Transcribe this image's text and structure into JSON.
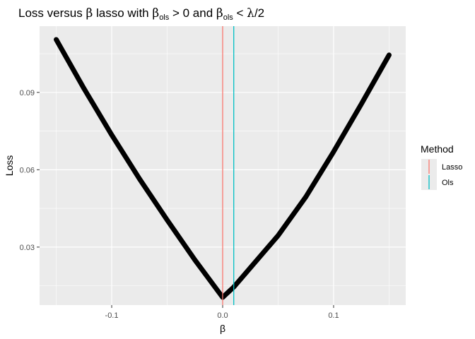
{
  "chart_data": {
    "type": "line",
    "title": {
      "part1": "Loss versus ",
      "beta1": "β",
      "part2": " lasso with ",
      "beta2": "β",
      "sub2": "ols",
      "part3": " > 0 and ",
      "beta3": "β",
      "sub3": "ols",
      "part4": " < ",
      "lambda": "λ",
      "part5": "/2"
    },
    "xlabel": "β",
    "ylabel": "Loss",
    "xlim": [
      -0.165,
      0.165
    ],
    "ylim": [
      0.0075,
      0.1157
    ],
    "x_ticks": [
      {
        "value": -0.1,
        "label": "-0.1"
      },
      {
        "value": 0.0,
        "label": "0.0"
      },
      {
        "value": 0.1,
        "label": "0.1"
      }
    ],
    "y_ticks": [
      {
        "value": 0.03,
        "label": "0.03"
      },
      {
        "value": 0.06,
        "label": "0.06"
      },
      {
        "value": 0.09,
        "label": "0.09"
      }
    ],
    "x_minor": [
      -0.15,
      -0.05,
      0.05,
      0.15
    ],
    "y_minor": [
      0.015,
      0.045,
      0.075,
      0.105
    ],
    "grid": true,
    "series": [
      {
        "x": [
          -0.15,
          -0.125,
          -0.1,
          -0.075,
          -0.05,
          -0.025,
          0.0,
          0.01,
          0.025,
          0.05,
          0.075,
          0.1,
          0.125,
          0.15
        ],
        "y": [
          0.1105,
          0.0915,
          0.0735,
          0.0565,
          0.0405,
          0.025,
          0.0105,
          0.0145,
          0.022,
          0.0345,
          0.0495,
          0.067,
          0.0855,
          0.1045
        ],
        "color": "#000000"
      }
    ],
    "vlines": [
      {
        "x": 0.0,
        "method": "Lasso",
        "color": "#F8766D"
      },
      {
        "x": 0.01,
        "method": "Ols",
        "color": "#00BFC4"
      }
    ],
    "legend": {
      "title": "Method",
      "position": "right",
      "entries": [
        {
          "label": "Lasso",
          "color": "#F8766D"
        },
        {
          "label": "Ols",
          "color": "#00BFC4"
        }
      ]
    },
    "panel_background": "#EBEBEB",
    "grid_color": "#FFFFFF"
  }
}
